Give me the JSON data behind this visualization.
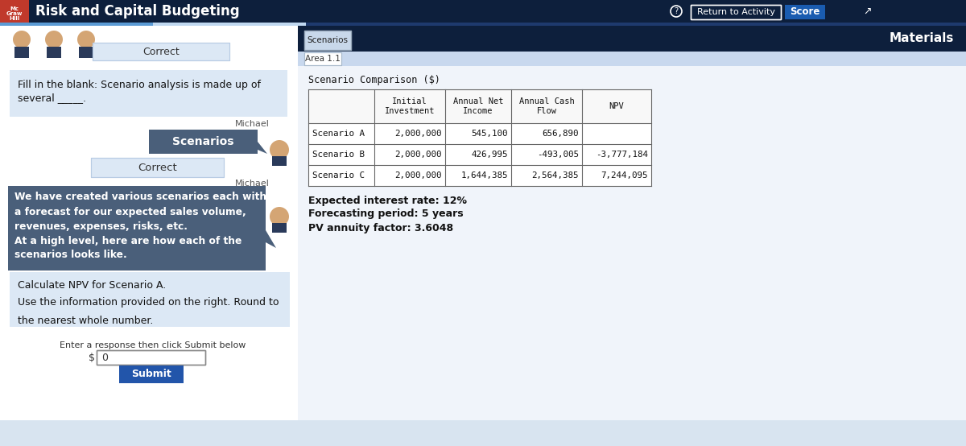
{
  "title": "Risk and Capital Budgeting",
  "bg_color": "#ffffff",
  "header_bg": "#0d1f3c",
  "mcgraw_red": "#c0392b",
  "chat_bg_left": "#dce8f5",
  "chat_bg_dark": "#4a5f7a",
  "question_text": "Fill in the blank: Scenario analysis is made up of\nseveral _____.",
  "answer_text": "Scenarios",
  "correct_text": "Correct",
  "message1_text": "We have created various scenarios each with\na forecast for our expected sales volume,\nrevenues, expenses, risks, etc.\nAt a high level, here are how each of the\nscenarios looks like.",
  "question2_text": "Calculate NPV for Scenario A.\nUse the information provided on the right. Round to\nthe nearest whole number.",
  "input_label": "Enter a response then click Submit below",
  "input_value": "0",
  "submit_text": "Submit",
  "submit_color": "#2255aa",
  "materials_text": "Materials",
  "scenarios_tab": "Scenarios",
  "area_tab": "Area 1.1",
  "table_title": "Scenario Comparison ($)",
  "col_headers": [
    "",
    "Initial\nInvestment",
    "Annual Net\nIncome",
    "Annual Cash\nFlow",
    "NPV"
  ],
  "rows": [
    [
      "Scenario A",
      "2,000,000",
      "545,100",
      "656,890",
      ""
    ],
    [
      "Scenario B",
      "2,000,000",
      "426,995",
      "-493,005",
      "-3,777,184"
    ],
    [
      "Scenario C",
      "2,000,000",
      "1,644,385",
      "2,564,385",
      "7,244,095"
    ]
  ],
  "info_lines": [
    "Expected interest rate: 12%",
    "Forecasting period: 5 years",
    "PV annuity factor: 3.6048"
  ],
  "michael_label": "Michael",
  "return_activity": "Return to Activity",
  "score_text": "Score"
}
